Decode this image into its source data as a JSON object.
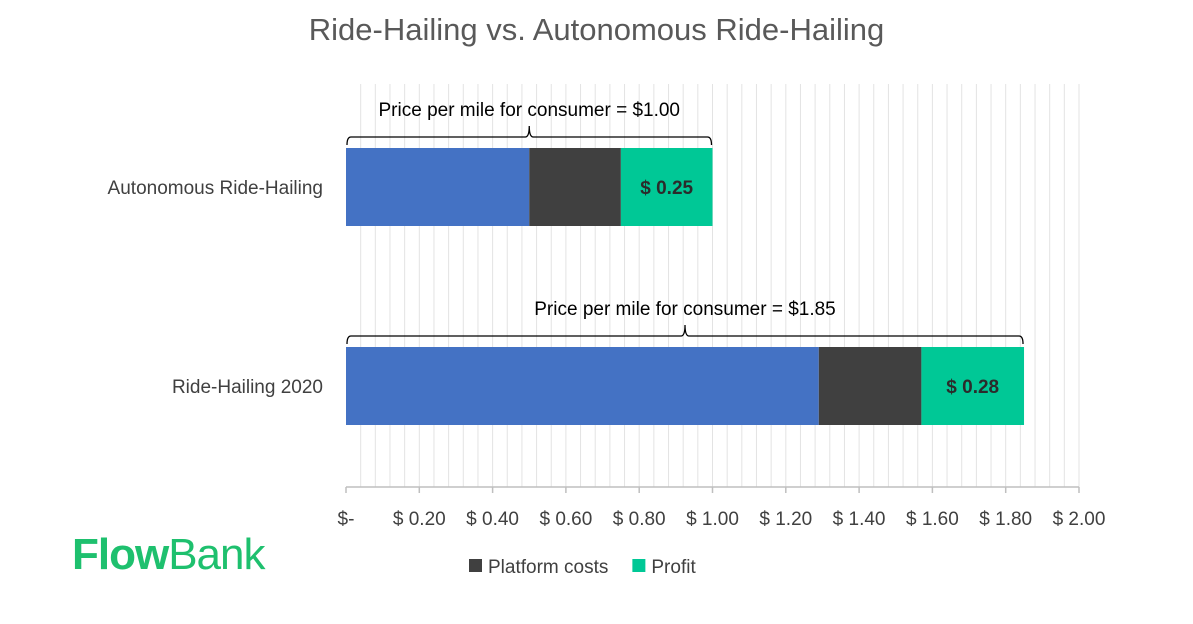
{
  "chart_data": {
    "type": "bar",
    "orientation": "horizontal",
    "stacked": true,
    "title": "Ride-Hailing vs. Autonomous Ride-Hailing",
    "categories": [
      "Autonomous Ride-Hailing",
      "Ride-Hailing 2020"
    ],
    "series": [
      {
        "values": [
          0.5,
          1.29
        ],
        "color": "#4472c4"
      },
      {
        "name": "Platform costs",
        "values": [
          0.25,
          0.28
        ],
        "color": "#404040"
      },
      {
        "name": "Profit",
        "values": [
          0.25,
          0.28
        ],
        "color": "#00c896",
        "data_labels": [
          "$ 0.25",
          "$ 0.28"
        ]
      }
    ],
    "annotations": [
      {
        "category": "Autonomous Ride-Hailing",
        "text": "Price per mile for consumer = $1.00",
        "span": [
          0,
          1.0
        ]
      },
      {
        "category": "Ride-Hailing 2020",
        "text": "Price per mile for consumer = $1.85",
        "span": [
          0,
          1.85
        ]
      }
    ],
    "xlim": [
      0,
      2.0
    ],
    "x_ticks": [
      0,
      0.2,
      0.4,
      0.6,
      0.8,
      1.0,
      1.2,
      1.4,
      1.6,
      1.8,
      2.0
    ],
    "x_tick_labels": [
      "$-",
      "$ 0.20",
      "$ 0.40",
      "$ 0.60",
      "$ 0.80",
      "$ 1.00",
      "$ 1.20",
      "$ 1.40",
      "$ 1.60",
      "$ 1.80",
      "$ 2.00"
    ],
    "grid": "vertical minor",
    "legend": {
      "position": "bottom",
      "entries": [
        "Platform costs",
        "Profit"
      ]
    }
  },
  "logo": {
    "part1": "Flow",
    "part2": "Bank",
    "color": "#1ec06e"
  }
}
